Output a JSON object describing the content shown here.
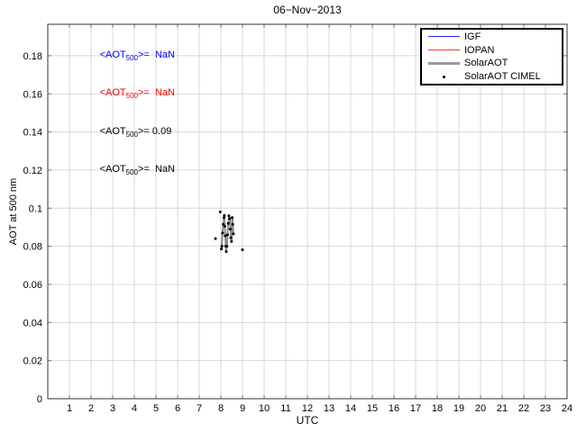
{
  "chart_data": {
    "type": "line",
    "title": "06−Nov−2013",
    "xlabel": "UTC",
    "ylabel": "AOT at 500 nm",
    "xlim": [
      0,
      24
    ],
    "ylim": [
      0,
      0.1965
    ],
    "xticks": [
      1,
      2,
      3,
      4,
      5,
      6,
      7,
      8,
      9,
      10,
      11,
      12,
      13,
      14,
      15,
      16,
      17,
      18,
      19,
      20,
      21,
      22,
      23,
      24
    ],
    "yticks": [
      0,
      0.02,
      0.04,
      0.06,
      0.08,
      0.1,
      0.12,
      0.14,
      0.16,
      0.18
    ],
    "grid": true,
    "colors": {
      "grid": "#d8d8d8",
      "frame": "#333333",
      "tick": "#777777",
      "text": "#000000",
      "background": "#ffffff"
    },
    "legend": {
      "position": "northeast",
      "entries": [
        {
          "label": "IGF",
          "style": "line",
          "color": "#2222ff",
          "width": 1
        },
        {
          "label": "IOPAN",
          "style": "line",
          "color": "#ff3333",
          "width": 1
        },
        {
          "label": "SolarAOT",
          "style": "line",
          "color": "#9a9a9a",
          "width": 3
        },
        {
          "label": "SolarAOT CIMEL",
          "style": "marker",
          "color": "#000000"
        }
      ]
    },
    "series": [
      {
        "name": "IGF",
        "style": "line",
        "color": "#0000ff",
        "width": 1,
        "points": []
      },
      {
        "name": "IOPAN",
        "style": "line",
        "color": "#ff0000",
        "width": 1,
        "points": []
      },
      {
        "name": "SolarAOT",
        "style": "line",
        "color": "#8c8c8c",
        "width": 2,
        "points": [
          [
            8.03,
            0.079
          ],
          [
            8.08,
            0.088
          ],
          [
            8.11,
            0.0915
          ],
          [
            8.16,
            0.0962
          ],
          [
            8.2,
            0.086
          ],
          [
            8.24,
            0.0775
          ],
          [
            8.28,
            0.08
          ],
          [
            8.33,
            0.0905
          ],
          [
            8.38,
            0.0962
          ],
          [
            8.42,
            0.094
          ],
          [
            8.47,
            0.0838
          ],
          [
            8.5,
            0.0825
          ],
          [
            8.53,
            0.0955
          ],
          [
            8.58,
            0.0862
          ]
        ]
      },
      {
        "name": "SolarAOT CIMEL",
        "style": "marker",
        "color": "#000000",
        "points": [
          [
            7.75,
            0.084
          ],
          [
            7.97,
            0.098
          ],
          [
            8.02,
            0.0785
          ],
          [
            8.05,
            0.08
          ],
          [
            8.08,
            0.087
          ],
          [
            8.11,
            0.0915
          ],
          [
            8.14,
            0.095
          ],
          [
            8.16,
            0.0962
          ],
          [
            8.18,
            0.0905
          ],
          [
            8.2,
            0.0855
          ],
          [
            8.22,
            0.08
          ],
          [
            8.25,
            0.0772
          ],
          [
            8.28,
            0.08
          ],
          [
            8.31,
            0.086
          ],
          [
            8.34,
            0.092
          ],
          [
            8.37,
            0.096
          ],
          [
            8.4,
            0.0945
          ],
          [
            8.43,
            0.089
          ],
          [
            8.46,
            0.0845
          ],
          [
            8.49,
            0.0825
          ],
          [
            8.52,
            0.095
          ],
          [
            8.55,
            0.0915
          ],
          [
            8.58,
            0.0865
          ],
          [
            9.0,
            0.0782
          ]
        ]
      }
    ],
    "annotations": [
      {
        "pre": "<AOT",
        "sub": "500",
        "post": ">=  NaN",
        "color": "#0000ff",
        "x": 2.4,
        "y": 0.18
      },
      {
        "pre": "<AOT",
        "sub": "500",
        "post": ">=  NaN",
        "color": "#ff0000",
        "x": 2.4,
        "y": 0.16
      },
      {
        "pre": "<AOT",
        "sub": "500",
        "post": ">= 0.09",
        "color": "#000000",
        "x": 2.4,
        "y": 0.14
      },
      {
        "pre": "<AOT",
        "sub": "500",
        "post": ">=  NaN",
        "color": "#000000",
        "x": 2.4,
        "y": 0.12
      }
    ]
  }
}
